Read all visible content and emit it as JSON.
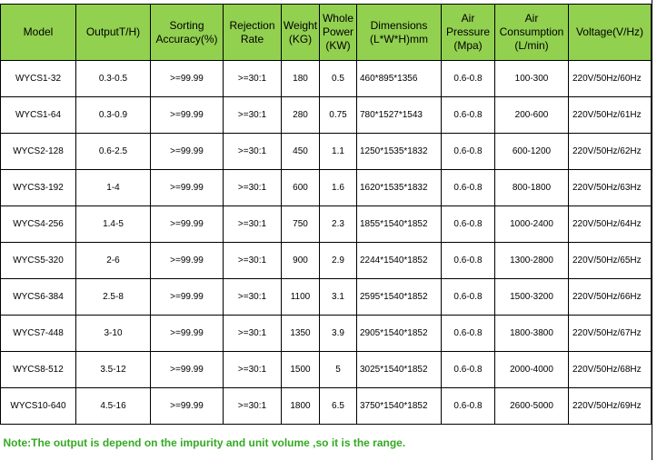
{
  "table": {
    "headers": [
      [
        "Model"
      ],
      [
        "OutputT/H)"
      ],
      [
        "Sorting",
        "Accuracy(%)"
      ],
      [
        "Rejection",
        "Rate"
      ],
      [
        "Weight",
        "(KG)"
      ],
      [
        "Whole",
        "Power",
        "(KW)"
      ],
      [
        "Dimensions",
        "(L*W*H)mm"
      ],
      [
        "Air",
        "Pressure",
        "(Mpa)"
      ],
      [
        "Air",
        "Consumption",
        "(L/min)"
      ],
      [
        "Voltage(V/Hz)"
      ]
    ],
    "rows": [
      [
        "WYCS1-32",
        "0.3-0.5",
        ">=99.99",
        ">=30:1",
        "180",
        "0.5",
        "460*895*1356",
        "0.6-0.8",
        "100-300",
        "220V/50Hz/60Hz"
      ],
      [
        "WYCS1-64",
        "0.3-0.9",
        ">=99.99",
        ">=30:1",
        "280",
        "0.75",
        "780*1527*1543",
        "0.6-0.8",
        "200-600",
        "220V/50Hz/61Hz"
      ],
      [
        "WYCS2-128",
        "0.6-2.5",
        ">=99.99",
        ">=30:1",
        "450",
        "1.1",
        "1250*1535*1832",
        "0.6-0.8",
        "600-1200",
        "220V/50Hz/62Hz"
      ],
      [
        "WYCS3-192",
        "1-4",
        ">=99.99",
        ">=30:1",
        "600",
        "1.6",
        "1620*1535*1832",
        "0.6-0.8",
        "800-1800",
        "220V/50Hz/63Hz"
      ],
      [
        "WYCS4-256",
        "1.4-5",
        ">=99.99",
        ">=30:1",
        "750",
        "2.3",
        "1855*1540*1852",
        "0.6-0.8",
        "1000-2400",
        "220V/50Hz/64Hz"
      ],
      [
        "WYCS5-320",
        "2-6",
        ">=99.99",
        ">=30:1",
        "900",
        "2.9",
        "2244*1540*1852",
        "0.6-0.8",
        "1300-2800",
        "220V/50Hz/65Hz"
      ],
      [
        "WYCS6-384",
        "2.5-8",
        ">=99.99",
        ">=30:1",
        "1100",
        "3.1",
        "2595*1540*1852",
        "0.6-0.8",
        "1500-3200",
        "220V/50Hz/66Hz"
      ],
      [
        "WYCS7-448",
        "3-10",
        ">=99.99",
        ">=30:1",
        "1350",
        "3.9",
        "2905*1540*1852",
        "0.6-0.8",
        "1800-3800",
        "220V/50Hz/67Hz"
      ],
      [
        "WYCS8-512",
        "3.5-12",
        ">=99.99",
        ">=30:1",
        "1500",
        "5",
        "3025*1540*1852",
        "0.6-0.8",
        "2000-4000",
        "220V/50Hz/68Hz"
      ],
      [
        "WYCS10-640",
        "4.5-16",
        ">=99.99",
        ">=30:1",
        "1800",
        "6.5",
        "3750*1540*1852",
        "0.6-0.8",
        "2600-5000",
        "220V/50Hz/69Hz"
      ]
    ],
    "note": "Note:The output is depend on the impurity and unit volume ,so it is the range."
  },
  "colors": {
    "header_bg": "#92d050",
    "note_text": "#33aa22",
    "grid": "#000000"
  }
}
